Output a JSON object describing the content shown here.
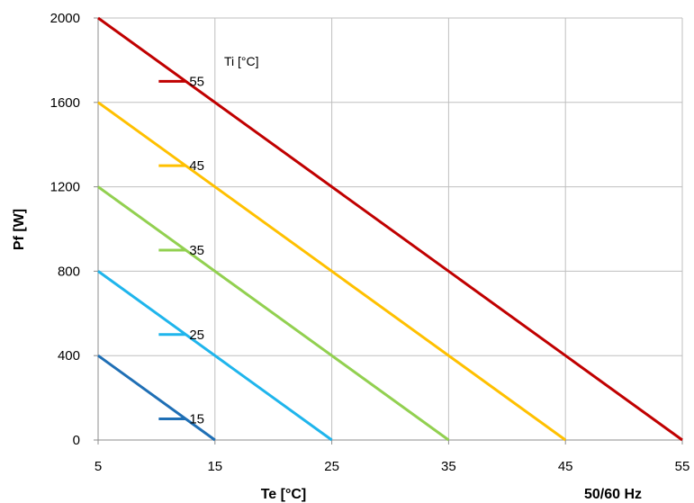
{
  "chart_data": {
    "type": "line",
    "xlabel": "Te [°C]",
    "ylabel": "Pf [W]",
    "legend_title": "Ti [°C]",
    "footnote": "50/60 Hz",
    "xlim": [
      5,
      55
    ],
    "ylim": [
      0,
      2000
    ],
    "x_ticks": [
      "5",
      "15",
      "25",
      "35",
      "45",
      "55"
    ],
    "y_ticks": [
      "0",
      "400",
      "800",
      "1200",
      "1600",
      "2000"
    ],
    "grid": true,
    "series": [
      {
        "name": "55",
        "color": "#c00000",
        "x": [
          5,
          55
        ],
        "y": [
          2000,
          0
        ]
      },
      {
        "name": "45",
        "color": "#ffc000",
        "x": [
          5,
          45
        ],
        "y": [
          1600,
          0
        ]
      },
      {
        "name": "35",
        "color": "#92d050",
        "x": [
          5,
          35
        ],
        "y": [
          1200,
          0
        ]
      },
      {
        "name": "25",
        "color": "#1fb5ec",
        "x": [
          5,
          25
        ],
        "y": [
          800,
          0
        ]
      },
      {
        "name": "15",
        "color": "#1f6fb5",
        "x": [
          5,
          15
        ],
        "y": [
          400,
          0
        ]
      }
    ]
  }
}
